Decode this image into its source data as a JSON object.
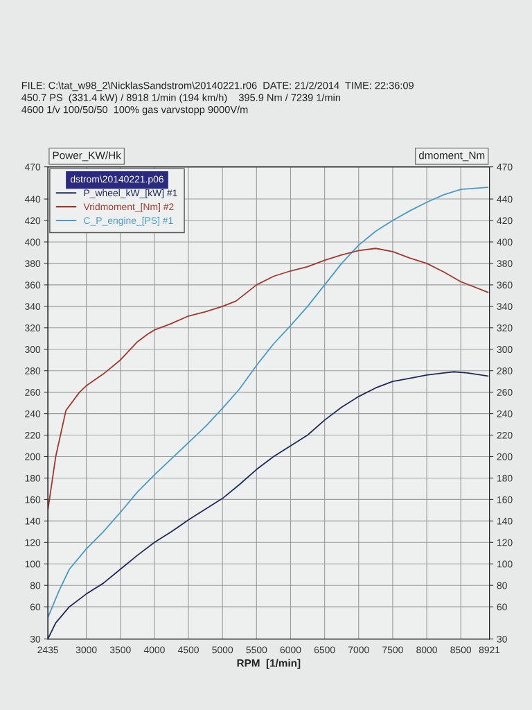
{
  "chart_data": {
    "type": "line",
    "xlabel": "RPM  [1/min]",
    "ylabel": "Power_KW/Hk",
    "y2label": "dmoment_Nm",
    "legend_title": "dstrom\\20140221.p06",
    "annotations": [
      "FILE: C:\\tat_w98_2\\NicklasSandstrom\\20140221.r06  DATE: 21/2/2014  TIME: 22:36:09",
      "450.7 PS  (331.4 kW) / 8918 1/min (194 km/h)    395.9 Nm / 7239 1/min",
      "4600 1/v 100/50/50  100% gas varvstopp 9000V/m"
    ],
    "series": [
      {
        "name": "P_wheel_kW_[kW] #1",
        "color": "#1f2a5a",
        "x": [
          2435,
          2550,
          2750,
          3000,
          3250,
          3500,
          3750,
          4000,
          4250,
          4500,
          4750,
          5000,
          5250,
          5500,
          5750,
          6000,
          6250,
          6500,
          6750,
          7000,
          7250,
          7500,
          7750,
          8000,
          8250,
          8400,
          8600,
          8900
        ],
        "values": [
          30,
          45,
          60,
          72,
          82,
          95,
          108,
          120,
          130,
          141,
          151,
          161,
          174,
          188,
          200,
          210,
          220,
          234,
          246,
          256,
          264,
          270,
          273,
          276,
          278,
          279,
          278,
          275
        ]
      },
      {
        "name": "Vridmoment_[Nm] #2",
        "color": "#a0392e",
        "axis": "y2",
        "x": [
          2435,
          2550,
          2700,
          2900,
          3000,
          3250,
          3500,
          3750,
          3900,
          4000,
          4250,
          4500,
          4750,
          5000,
          5200,
          5500,
          5750,
          6000,
          6250,
          6500,
          6750,
          7000,
          7250,
          7500,
          7750,
          8000,
          8250,
          8500,
          8900
        ],
        "values": [
          150,
          200,
          243,
          260,
          266,
          277,
          290,
          307,
          314,
          318,
          324,
          331,
          335,
          340,
          345,
          360,
          368,
          373,
          377,
          383,
          388,
          392,
          394,
          391,
          385,
          380,
          372,
          363,
          353
        ]
      },
      {
        "name": "C_P_engine_[PS] #1",
        "color": "#4a9ac8",
        "x": [
          2435,
          2600,
          2750,
          3000,
          3250,
          3500,
          3750,
          4000,
          4250,
          4500,
          4750,
          5000,
          5250,
          5500,
          5750,
          6000,
          6250,
          6500,
          6750,
          7000,
          7250,
          7500,
          7750,
          8000,
          8250,
          8500,
          8900
        ],
        "values": [
          50,
          75,
          95,
          114,
          130,
          148,
          167,
          183,
          198,
          213,
          228,
          245,
          263,
          285,
          305,
          322,
          340,
          360,
          380,
          397,
          410,
          420,
          429,
          437,
          444,
          449,
          451
        ]
      }
    ],
    "xlim": [
      2435,
      8921
    ],
    "xticks": [
      2435,
      3000,
      3500,
      4000,
      4500,
      5000,
      5500,
      6000,
      6500,
      7000,
      7500,
      8000,
      8500,
      8921
    ],
    "ylim": [
      30,
      470
    ],
    "yticks": [
      30,
      60,
      80,
      100,
      120,
      140,
      160,
      180,
      200,
      220,
      240,
      260,
      280,
      300,
      320,
      340,
      360,
      380,
      400,
      420,
      440,
      470
    ],
    "y2lim": [
      30,
      470
    ],
    "y2ticks": [
      30,
      60,
      80,
      100,
      120,
      140,
      160,
      180,
      200,
      220,
      240,
      260,
      280,
      300,
      320,
      340,
      360,
      380,
      400,
      420,
      440,
      470
    ],
    "grid": true,
    "legend": "top left"
  }
}
